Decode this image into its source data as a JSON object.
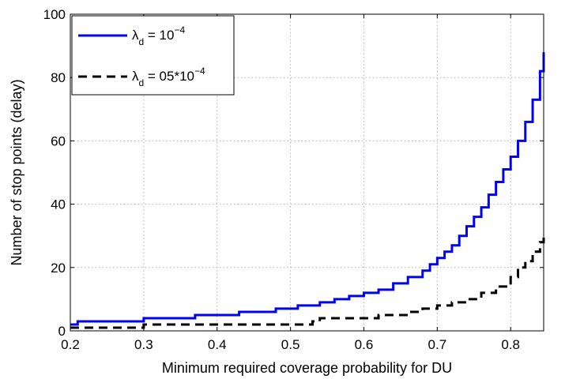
{
  "chart_data": {
    "type": "line",
    "title": "",
    "xlabel": "Minimum required coverage probability for DU",
    "ylabel": "Number of stop points (delay)",
    "xlim": [
      0.2,
      0.845
    ],
    "ylim": [
      0,
      100
    ],
    "xticks": [
      "0.2",
      "0.3",
      "0.4",
      "0.5",
      "0.6",
      "0.7",
      "0.8"
    ],
    "yticks": [
      "0",
      "20",
      "40",
      "60",
      "80",
      "100"
    ],
    "grid": true,
    "legend_position": "top-left",
    "series": [
      {
        "name": "λd = 10^-4",
        "legend": {
          "symbol": "λ",
          "sub": "d",
          "eq": " = 10",
          "sup": "−4",
          "rest": ""
        },
        "color": "#0000ff",
        "style": "solid",
        "x": [
          0.2,
          0.21,
          0.3,
          0.37,
          0.43,
          0.48,
          0.51,
          0.54,
          0.56,
          0.58,
          0.6,
          0.62,
          0.64,
          0.66,
          0.68,
          0.69,
          0.7,
          0.71,
          0.72,
          0.73,
          0.74,
          0.75,
          0.76,
          0.77,
          0.78,
          0.79,
          0.8,
          0.81,
          0.82,
          0.83,
          0.84,
          0.845
        ],
        "y": [
          2,
          3,
          4,
          5,
          6,
          7,
          8,
          9,
          10,
          11,
          12,
          13,
          15,
          17,
          19,
          21,
          23,
          25,
          27,
          30,
          33,
          36,
          39,
          43,
          47,
          51,
          55,
          60,
          66,
          73,
          82,
          88
        ]
      },
      {
        "name": "λd = 05*10^-4",
        "legend": {
          "symbol": "λ",
          "sub": "d",
          "eq": " = 05*10",
          "sup": "−4",
          "rest": ""
        },
        "color": "#000000",
        "style": "dashed",
        "x": [
          0.2,
          0.29,
          0.3,
          0.45,
          0.53,
          0.54,
          0.6,
          0.62,
          0.66,
          0.68,
          0.7,
          0.72,
          0.74,
          0.76,
          0.78,
          0.8,
          0.81,
          0.82,
          0.83,
          0.84,
          0.845
        ],
        "y": [
          1,
          1,
          2,
          2,
          3,
          4,
          4,
          5,
          6,
          7,
          8,
          9,
          10,
          12,
          14,
          17,
          20,
          22,
          25,
          28,
          31
        ]
      }
    ]
  }
}
